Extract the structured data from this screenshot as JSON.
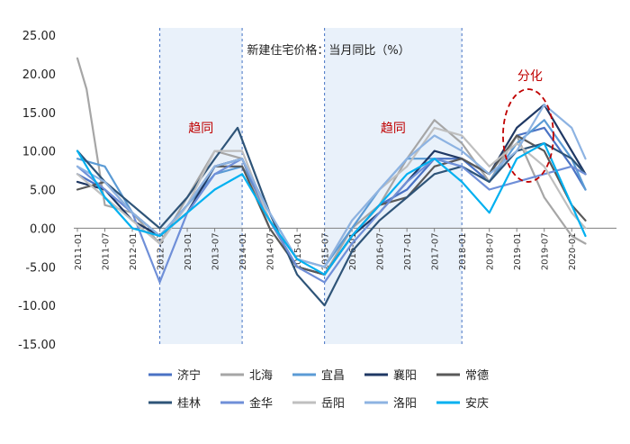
{
  "chart_data": {
    "type": "line",
    "title": "新建住宅价格：当月同比（%）",
    "ylim": [
      -15,
      25
    ],
    "yticks": [
      "25.00",
      "20.00",
      "15.00",
      "10.00",
      "5.00",
      "0.00",
      "-5.00",
      "-10.00",
      "-15.00"
    ],
    "xticks": [
      "2011-01",
      "2011-07",
      "2012-01",
      "2012-07",
      "2013-01",
      "2013-07",
      "2014-01",
      "2014-07",
      "2015-01",
      "2015-07",
      "2016-01",
      "2016-07",
      "2017-01",
      "2017-07",
      "2018-01",
      "2018-07",
      "2019-01",
      "2019-07",
      "2020-01"
    ],
    "shaded_periods": [
      {
        "from": "2012-07",
        "to": "2014-01",
        "label": "趋同"
      },
      {
        "from": "2015-07",
        "to": "2018-01",
        "label": "趋同"
      }
    ],
    "annotation": {
      "label": "分化",
      "period_from": "2018-10",
      "period_to": "2019-09",
      "y_from": 6,
      "y_to": 18
    },
    "legend_position": "bottom",
    "x_start": "2011-01",
    "series": [
      {
        "name": "济宁",
        "color": "#4a72c4",
        "values": [
          {
            "x": "2011-01",
            "y": 7
          },
          {
            "x": "2011-07",
            "y": 5
          },
          {
            "x": "2012-01",
            "y": 2
          },
          {
            "x": "2012-07",
            "y": -1
          },
          {
            "x": "2013-01",
            "y": 3
          },
          {
            "x": "2013-07",
            "y": 8
          },
          {
            "x": "2014-01",
            "y": 9
          },
          {
            "x": "2014-07",
            "y": 1
          },
          {
            "x": "2015-01",
            "y": -5
          },
          {
            "x": "2015-07",
            "y": -6
          },
          {
            "x": "2016-01",
            "y": -1
          },
          {
            "x": "2016-07",
            "y": 3
          },
          {
            "x": "2017-01",
            "y": 5
          },
          {
            "x": "2017-07",
            "y": 9
          },
          {
            "x": "2018-01",
            "y": 9
          },
          {
            "x": "2018-07",
            "y": 6
          },
          {
            "x": "2019-01",
            "y": 12
          },
          {
            "x": "2019-07",
            "y": 13
          },
          {
            "x": "2020-01",
            "y": 8
          },
          {
            "x": "2020-04",
            "y": 5
          }
        ]
      },
      {
        "name": "北海",
        "color": "#a6a6a6",
        "values": [
          {
            "x": "2011-01",
            "y": 22
          },
          {
            "x": "2011-03",
            "y": 18
          },
          {
            "x": "2011-07",
            "y": 3
          },
          {
            "x": "2012-01",
            "y": 2
          },
          {
            "x": "2012-07",
            "y": -2
          },
          {
            "x": "2013-01",
            "y": 4
          },
          {
            "x": "2013-07",
            "y": 10
          },
          {
            "x": "2014-01",
            "y": 9
          },
          {
            "x": "2014-07",
            "y": 0
          },
          {
            "x": "2015-01",
            "y": -5
          },
          {
            "x": "2015-07",
            "y": -6
          },
          {
            "x": "2016-01",
            "y": 0
          },
          {
            "x": "2016-07",
            "y": 3
          },
          {
            "x": "2017-01",
            "y": 9
          },
          {
            "x": "2017-07",
            "y": 14
          },
          {
            "x": "2018-01",
            "y": 11
          },
          {
            "x": "2018-07",
            "y": 6
          },
          {
            "x": "2019-01",
            "y": 12
          },
          {
            "x": "2019-07",
            "y": 4
          },
          {
            "x": "2020-01",
            "y": -1
          },
          {
            "x": "2020-04",
            "y": -2
          }
        ]
      },
      {
        "name": "宜昌",
        "color": "#5b9bd5",
        "values": [
          {
            "x": "2011-01",
            "y": 9
          },
          {
            "x": "2011-07",
            "y": 8
          },
          {
            "x": "2012-01",
            "y": 2
          },
          {
            "x": "2012-07",
            "y": -1
          },
          {
            "x": "2013-01",
            "y": 3
          },
          {
            "x": "2013-07",
            "y": 7
          },
          {
            "x": "2014-01",
            "y": 8
          },
          {
            "x": "2014-07",
            "y": 2
          },
          {
            "x": "2015-01",
            "y": -4
          },
          {
            "x": "2015-07",
            "y": -5
          },
          {
            "x": "2016-01",
            "y": 0
          },
          {
            "x": "2016-07",
            "y": 5
          },
          {
            "x": "2017-01",
            "y": 9
          },
          {
            "x": "2017-07",
            "y": 9
          },
          {
            "x": "2018-01",
            "y": 8
          },
          {
            "x": "2018-07",
            "y": 6
          },
          {
            "x": "2019-01",
            "y": 11
          },
          {
            "x": "2019-07",
            "y": 14
          },
          {
            "x": "2020-01",
            "y": 9
          },
          {
            "x": "2020-04",
            "y": 5
          }
        ]
      },
      {
        "name": "襄阳",
        "color": "#1f3864",
        "values": [
          {
            "x": "2011-01",
            "y": 6
          },
          {
            "x": "2011-07",
            "y": 5
          },
          {
            "x": "2012-01",
            "y": 1
          },
          {
            "x": "2012-07",
            "y": -1
          },
          {
            "x": "2013-01",
            "y": 2
          },
          {
            "x": "2013-07",
            "y": 8
          },
          {
            "x": "2014-01",
            "y": 9
          },
          {
            "x": "2014-07",
            "y": 1
          },
          {
            "x": "2015-01",
            "y": -5
          },
          {
            "x": "2015-07",
            "y": -6
          },
          {
            "x": "2016-01",
            "y": -1
          },
          {
            "x": "2016-07",
            "y": 2
          },
          {
            "x": "2017-01",
            "y": 6
          },
          {
            "x": "2017-07",
            "y": 10
          },
          {
            "x": "2018-01",
            "y": 9
          },
          {
            "x": "2018-07",
            "y": 7
          },
          {
            "x": "2019-01",
            "y": 13
          },
          {
            "x": "2019-07",
            "y": 16
          },
          {
            "x": "2020-01",
            "y": 10
          },
          {
            "x": "2020-04",
            "y": 7
          }
        ]
      },
      {
        "name": "常德",
        "color": "#595959",
        "values": [
          {
            "x": "2011-01",
            "y": 5
          },
          {
            "x": "2011-07",
            "y": 6
          },
          {
            "x": "2012-01",
            "y": 2
          },
          {
            "x": "2012-07",
            "y": -1
          },
          {
            "x": "2013-01",
            "y": 3
          },
          {
            "x": "2013-07",
            "y": 8
          },
          {
            "x": "2014-01",
            "y": 8
          },
          {
            "x": "2014-07",
            "y": 0
          },
          {
            "x": "2015-01",
            "y": -5
          },
          {
            "x": "2015-07",
            "y": -6
          },
          {
            "x": "2016-01",
            "y": -1
          },
          {
            "x": "2016-07",
            "y": 3
          },
          {
            "x": "2017-01",
            "y": 4
          },
          {
            "x": "2017-07",
            "y": 8
          },
          {
            "x": "2018-01",
            "y": 9
          },
          {
            "x": "2018-07",
            "y": 7
          },
          {
            "x": "2019-01",
            "y": 12
          },
          {
            "x": "2019-07",
            "y": 10
          },
          {
            "x": "2020-01",
            "y": 3
          },
          {
            "x": "2020-04",
            "y": 1
          }
        ]
      },
      {
        "name": "桂林",
        "color": "#2e5478",
        "values": [
          {
            "x": "2011-01",
            "y": 10
          },
          {
            "x": "2011-07",
            "y": 6
          },
          {
            "x": "2012-01",
            "y": 3
          },
          {
            "x": "2012-07",
            "y": 0
          },
          {
            "x": "2013-01",
            "y": 4
          },
          {
            "x": "2013-07",
            "y": 9
          },
          {
            "x": "2013-12",
            "y": 13
          },
          {
            "x": "2014-07",
            "y": 2
          },
          {
            "x": "2015-01",
            "y": -6
          },
          {
            "x": "2015-07",
            "y": -10
          },
          {
            "x": "2016-01",
            "y": -3
          },
          {
            "x": "2016-07",
            "y": 1
          },
          {
            "x": "2017-01",
            "y": 4
          },
          {
            "x": "2017-07",
            "y": 7
          },
          {
            "x": "2018-01",
            "y": 8
          },
          {
            "x": "2018-07",
            "y": 6
          },
          {
            "x": "2019-01",
            "y": 10
          },
          {
            "x": "2019-07",
            "y": 11
          },
          {
            "x": "2020-01",
            "y": 9
          },
          {
            "x": "2020-04",
            "y": 7
          }
        ]
      },
      {
        "name": "金华",
        "color": "#6f8fd8",
        "values": [
          {
            "x": "2011-01",
            "y": 8
          },
          {
            "x": "2011-07",
            "y": 5
          },
          {
            "x": "2012-01",
            "y": 2
          },
          {
            "x": "2012-07",
            "y": -7
          },
          {
            "x": "2013-01",
            "y": 2
          },
          {
            "x": "2013-07",
            "y": 7
          },
          {
            "x": "2014-01",
            "y": 9
          },
          {
            "x": "2014-07",
            "y": 1
          },
          {
            "x": "2015-01",
            "y": -5
          },
          {
            "x": "2015-07",
            "y": -7
          },
          {
            "x": "2016-01",
            "y": -2
          },
          {
            "x": "2016-07",
            "y": 2
          },
          {
            "x": "2017-01",
            "y": 6
          },
          {
            "x": "2017-07",
            "y": 9
          },
          {
            "x": "2018-01",
            "y": 8
          },
          {
            "x": "2018-07",
            "y": 5
          },
          {
            "x": "2019-01",
            "y": 6
          },
          {
            "x": "2019-07",
            "y": 7
          },
          {
            "x": "2020-01",
            "y": 8
          },
          {
            "x": "2020-04",
            "y": 7
          }
        ]
      },
      {
        "name": "岳阳",
        "color": "#bfbfbf",
        "values": [
          {
            "x": "2011-01",
            "y": 7
          },
          {
            "x": "2011-07",
            "y": 4
          },
          {
            "x": "2012-01",
            "y": 1
          },
          {
            "x": "2012-07",
            "y": -2
          },
          {
            "x": "2013-01",
            "y": 3
          },
          {
            "x": "2013-07",
            "y": 10
          },
          {
            "x": "2014-01",
            "y": 10
          },
          {
            "x": "2014-07",
            "y": 1
          },
          {
            "x": "2015-01",
            "y": -4
          },
          {
            "x": "2015-07",
            "y": -5
          },
          {
            "x": "2016-01",
            "y": 1
          },
          {
            "x": "2016-07",
            "y": 5
          },
          {
            "x": "2017-01",
            "y": 8
          },
          {
            "x": "2017-07",
            "y": 13
          },
          {
            "x": "2018-01",
            "y": 12
          },
          {
            "x": "2018-07",
            "y": 8
          },
          {
            "x": "2019-01",
            "y": 11
          },
          {
            "x": "2019-07",
            "y": 8
          },
          {
            "x": "2020-01",
            "y": 2
          },
          {
            "x": "2020-04",
            "y": 0
          }
        ]
      },
      {
        "name": "洛阳",
        "color": "#8db3e2",
        "values": [
          {
            "x": "2011-01",
            "y": 8
          },
          {
            "x": "2011-07",
            "y": 6
          },
          {
            "x": "2012-01",
            "y": 2
          },
          {
            "x": "2012-07",
            "y": -1
          },
          {
            "x": "2013-01",
            "y": 3
          },
          {
            "x": "2013-07",
            "y": 8
          },
          {
            "x": "2014-01",
            "y": 9
          },
          {
            "x": "2014-07",
            "y": 2
          },
          {
            "x": "2015-01",
            "y": -4
          },
          {
            "x": "2015-07",
            "y": -5
          },
          {
            "x": "2016-01",
            "y": 1
          },
          {
            "x": "2016-07",
            "y": 5
          },
          {
            "x": "2017-01",
            "y": 9
          },
          {
            "x": "2017-07",
            "y": 12
          },
          {
            "x": "2018-01",
            "y": 10
          },
          {
            "x": "2018-07",
            "y": 7
          },
          {
            "x": "2019-01",
            "y": 10
          },
          {
            "x": "2019-07",
            "y": 16
          },
          {
            "x": "2020-01",
            "y": 13
          },
          {
            "x": "2020-04",
            "y": 9
          }
        ]
      },
      {
        "name": "安庆",
        "color": "#00b0f0",
        "values": [
          {
            "x": "2011-01",
            "y": 10
          },
          {
            "x": "2011-07",
            "y": 4
          },
          {
            "x": "2012-01",
            "y": 0
          },
          {
            "x": "2012-07",
            "y": -1
          },
          {
            "x": "2013-01",
            "y": 2
          },
          {
            "x": "2013-07",
            "y": 5
          },
          {
            "x": "2014-01",
            "y": 7
          },
          {
            "x": "2014-07",
            "y": 1
          },
          {
            "x": "2015-01",
            "y": -4
          },
          {
            "x": "2015-07",
            "y": -6
          },
          {
            "x": "2016-01",
            "y": -1
          },
          {
            "x": "2016-07",
            "y": 3
          },
          {
            "x": "2017-01",
            "y": 7
          },
          {
            "x": "2017-07",
            "y": 9
          },
          {
            "x": "2018-01",
            "y": 6
          },
          {
            "x": "2018-07",
            "y": 2
          },
          {
            "x": "2019-01",
            "y": 9
          },
          {
            "x": "2019-07",
            "y": 11
          },
          {
            "x": "2020-01",
            "y": 3
          },
          {
            "x": "2020-04",
            "y": -1
          }
        ]
      }
    ]
  }
}
